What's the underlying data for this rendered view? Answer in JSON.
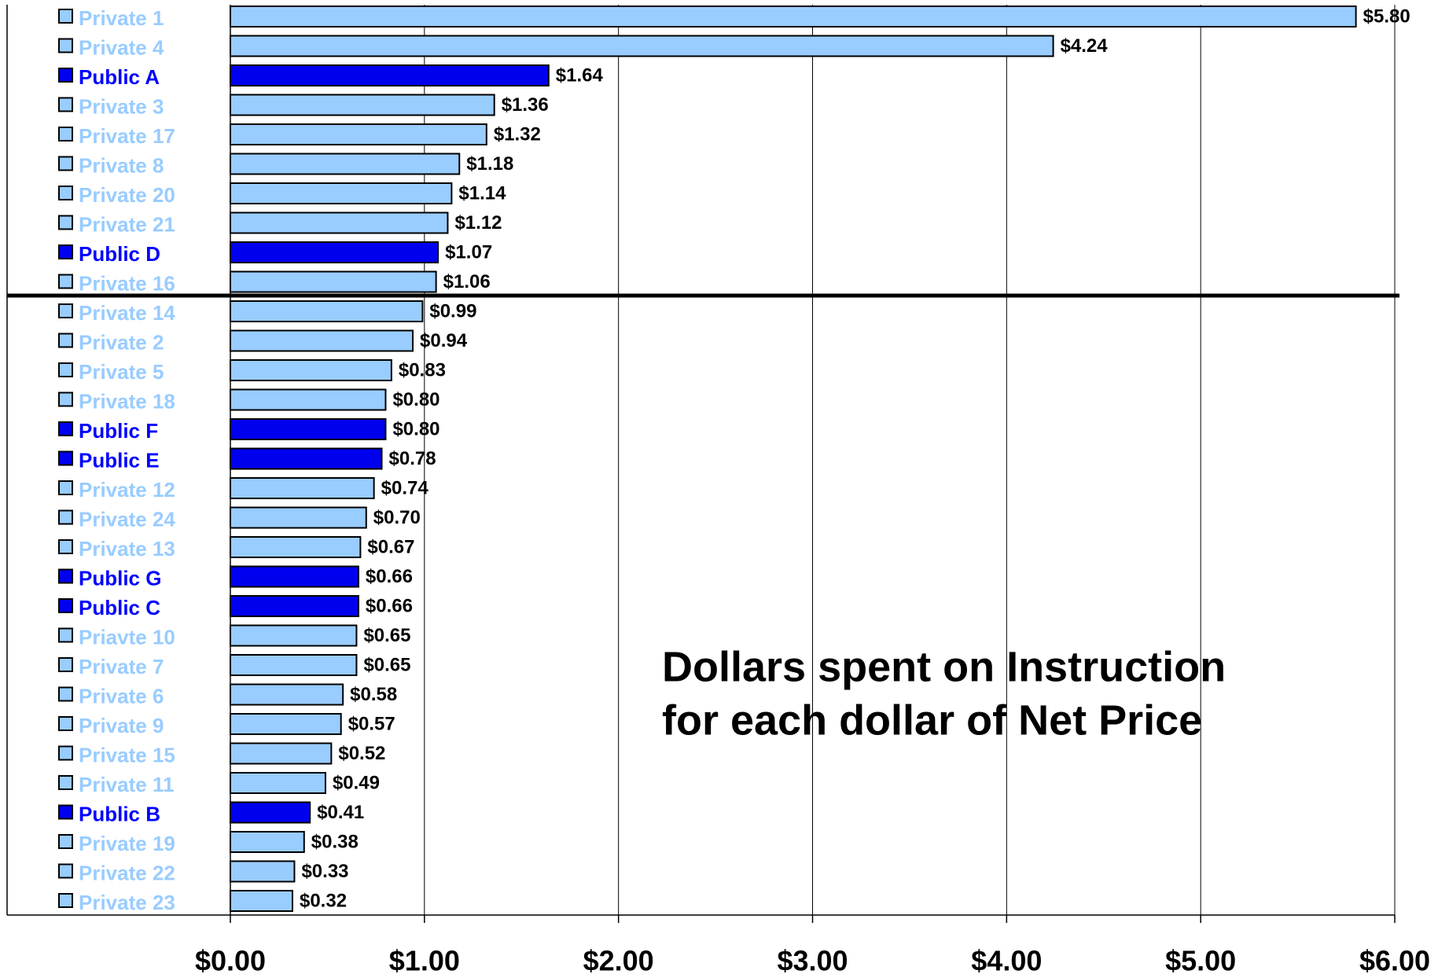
{
  "chart_data": {
    "type": "bar",
    "orientation": "horizontal",
    "annotation": [
      "Dollars spent on Instruction",
      "for each dollar of Net Price"
    ],
    "categories": [
      "Private 1",
      "Private 4",
      "Public A",
      "Private 3",
      "Private 17",
      "Private 8",
      "Private 20",
      "Private 21",
      "Public D",
      "Private 16",
      "Private 14",
      "Private 2",
      "Private 5",
      "Private 18",
      "Public F",
      "Public E",
      "Private 12",
      "Private 24",
      "Private 13",
      "Public G",
      "Public C",
      "Priavte 10",
      "Private 7",
      "Private 6",
      "Private 9",
      "Private 15",
      "Private 11",
      "Public B",
      "Private 19",
      "Private 22",
      "Private 23"
    ],
    "values": [
      5.8,
      4.24,
      1.64,
      1.36,
      1.32,
      1.18,
      1.14,
      1.12,
      1.07,
      1.06,
      0.99,
      0.94,
      0.83,
      0.8,
      0.8,
      0.78,
      0.74,
      0.7,
      0.67,
      0.66,
      0.66,
      0.65,
      0.65,
      0.58,
      0.57,
      0.52,
      0.49,
      0.41,
      0.38,
      0.33,
      0.32
    ],
    "value_labels": [
      "$5.80",
      "$4.24",
      "$1.64",
      "$1.36",
      "$1.32",
      "$1.18",
      "$1.14",
      "$1.12",
      "$1.07",
      "$1.06",
      "$0.99",
      "$0.94",
      "$0.83",
      "$0.80",
      "$0.80",
      "$0.78",
      "$0.74",
      "$0.70",
      "$0.67",
      "$0.66",
      "$0.66",
      "$0.65",
      "$0.65",
      "$0.58",
      "$0.57",
      "$0.52",
      "$0.49",
      "$0.41",
      "$0.38",
      "$0.33",
      "$0.32"
    ],
    "colors": [
      "#99ccff",
      "#99ccff",
      "#0000ee",
      "#99ccff",
      "#99ccff",
      "#99ccff",
      "#99ccff",
      "#99ccff",
      "#0000ee",
      "#99ccff",
      "#99ccff",
      "#99ccff",
      "#99ccff",
      "#99ccff",
      "#0000ee",
      "#0000ee",
      "#99ccff",
      "#99ccff",
      "#99ccff",
      "#0000ee",
      "#0000ee",
      "#99ccff",
      "#99ccff",
      "#99ccff",
      "#99ccff",
      "#99ccff",
      "#99ccff",
      "#0000ee",
      "#99ccff",
      "#99ccff",
      "#99ccff"
    ],
    "xlim": [
      0,
      6
    ],
    "xticks": [
      {
        "value": 0,
        "label": "$0.00"
      },
      {
        "value": 1,
        "label": "$1.00"
      },
      {
        "value": 2,
        "label": "$2.00"
      },
      {
        "value": 3,
        "label": "$3.00"
      },
      {
        "value": 4,
        "label": "$4.00"
      },
      {
        "value": 5,
        "label": "$5.00"
      },
      {
        "value": 6,
        "label": "$6.00"
      }
    ],
    "grid": true
  }
}
